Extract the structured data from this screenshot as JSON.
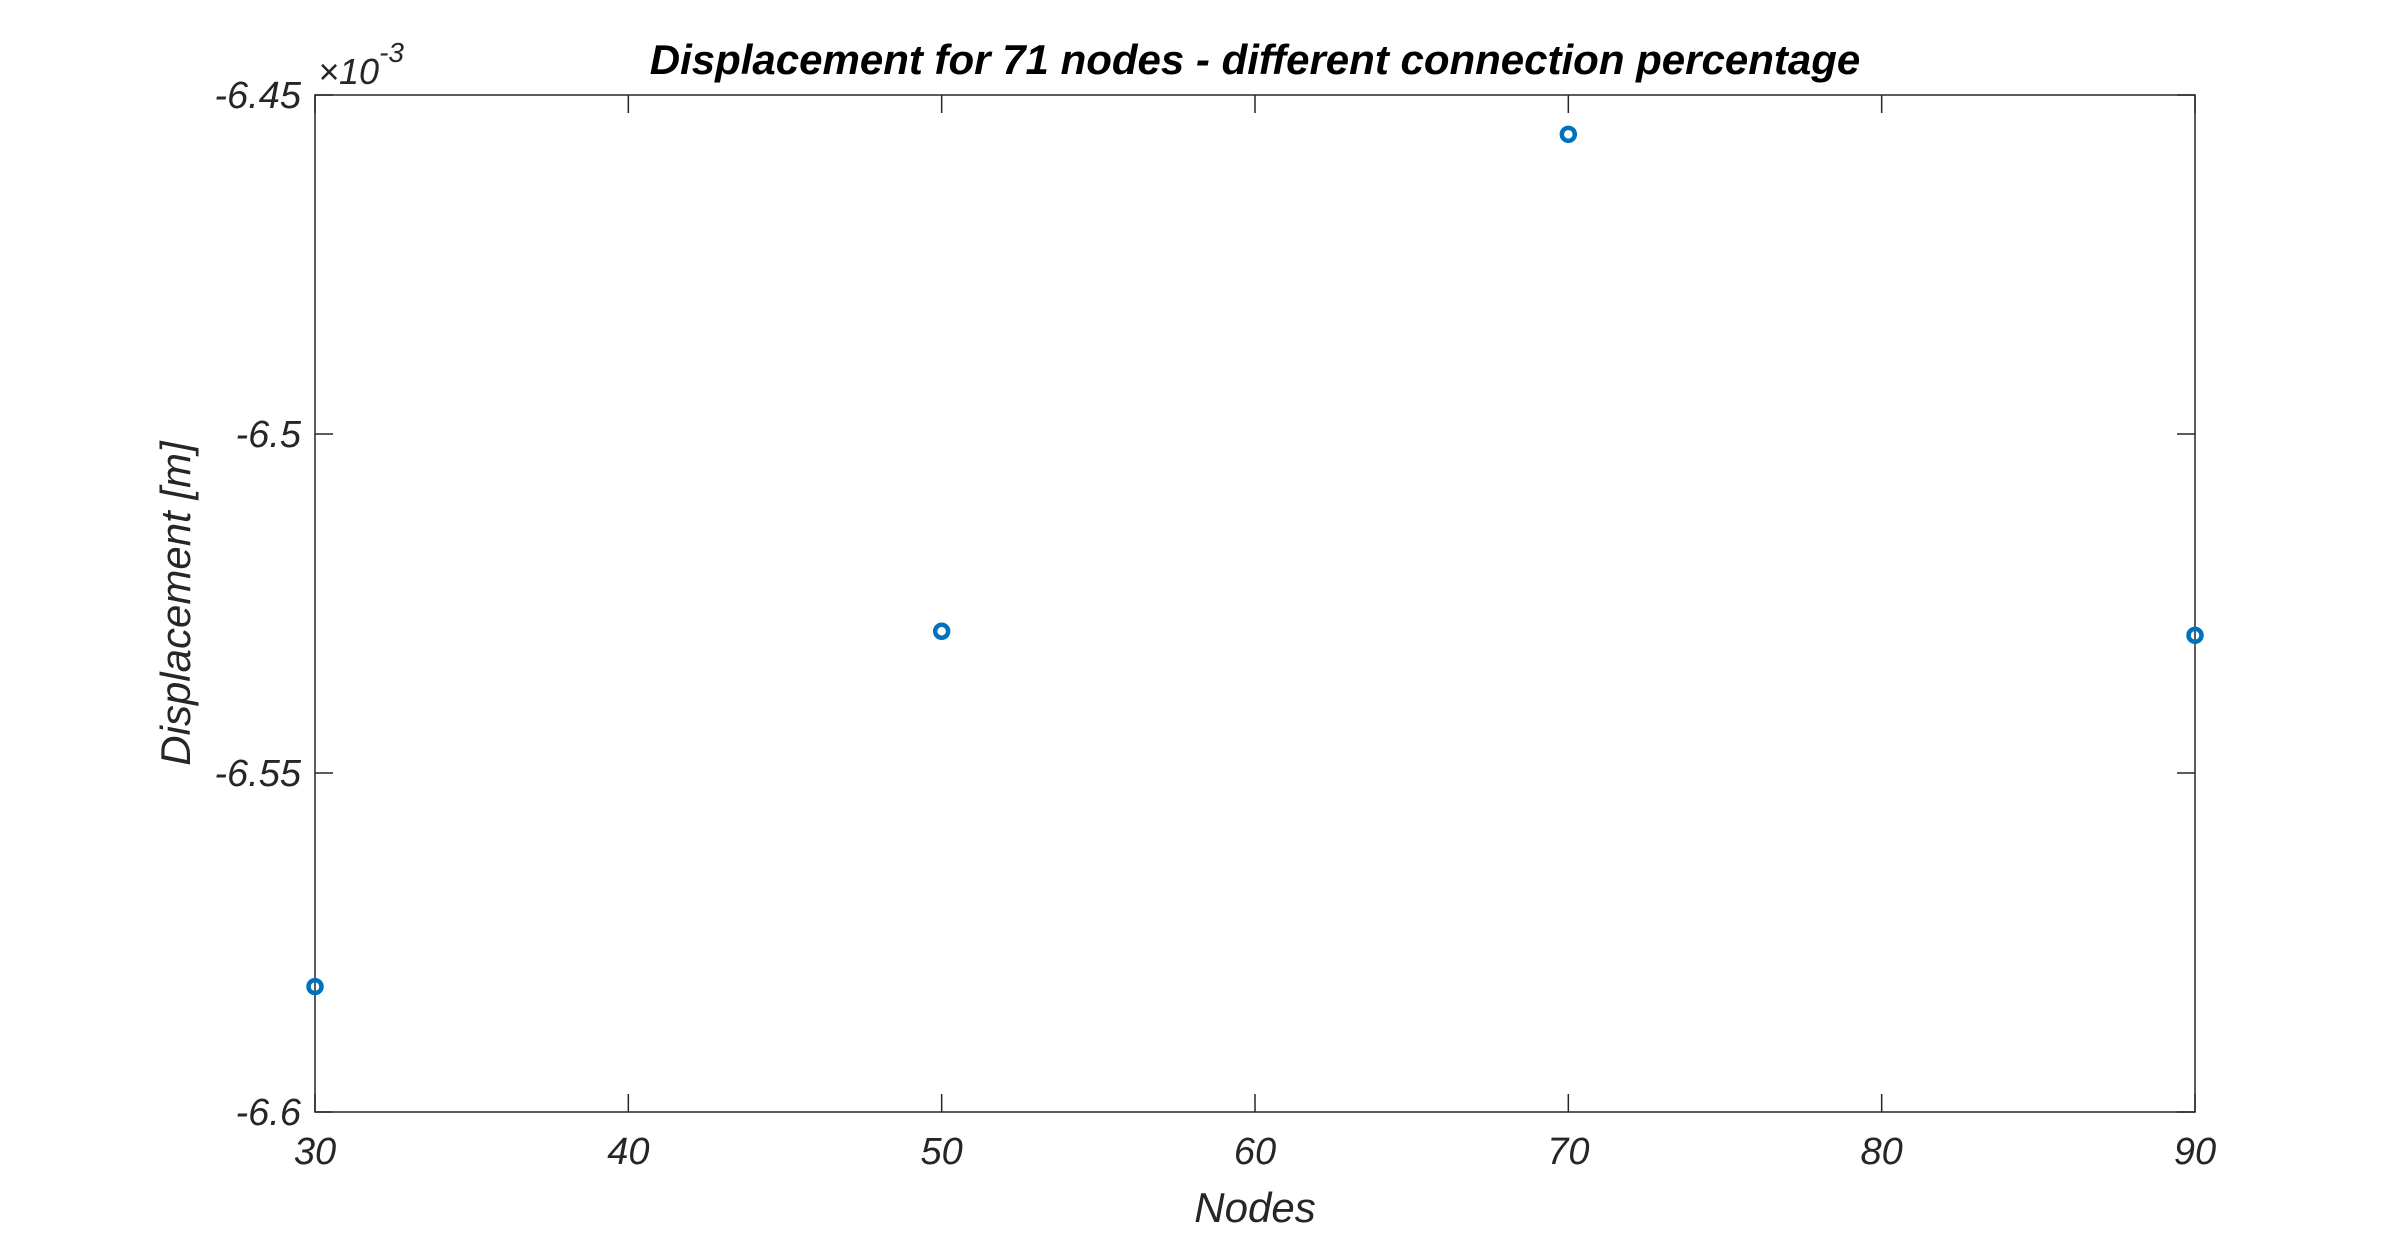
{
  "chart_data": {
    "type": "scatter",
    "title": "Displacement for 71 nodes - different connection percentage",
    "xlabel": "Nodes",
    "ylabel": "Displacement [m]",
    "xlim": [
      30,
      90
    ],
    "ylim": [
      -6.6,
      -6.45
    ],
    "y_exponent_label": "×10",
    "y_exponent_power": "-3",
    "x_ticks": [
      30,
      40,
      50,
      60,
      70,
      80,
      90
    ],
    "x_tick_labels": [
      "30",
      "40",
      "50",
      "60",
      "70",
      "80",
      "90"
    ],
    "y_ticks": [
      -6.6,
      -6.55,
      -6.5,
      -6.45
    ],
    "y_tick_labels": [
      "-6.6",
      "-6.55",
      "-6.5",
      "-6.45"
    ],
    "grid": false,
    "box": true,
    "marker": "circle",
    "series": [
      {
        "x": [
          30,
          50,
          70,
          90
        ],
        "y": [
          -6.5815,
          -6.5291,
          -6.4558,
          -6.5297
        ],
        "color": "#0072BD"
      }
    ],
    "axis_color": "#262626"
  }
}
